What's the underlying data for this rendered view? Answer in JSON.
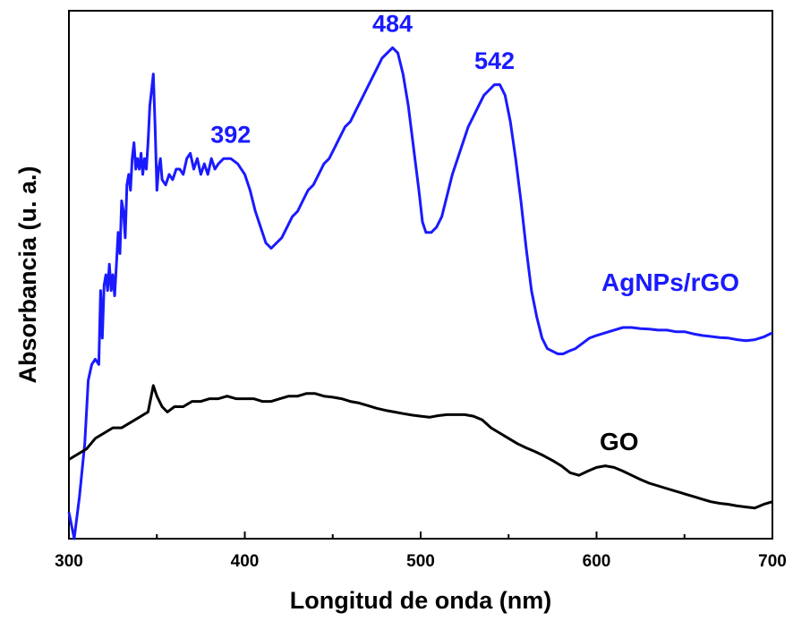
{
  "chart_data": {
    "type": "line",
    "xlabel": "Longitud de onda (nm)",
    "ylabel": "Absorbancia (u. a.)",
    "xlim": [
      300,
      700
    ],
    "ylim": [
      0,
      1
    ],
    "x_ticks": [
      "300",
      "400",
      "500",
      "600",
      "700"
    ],
    "y_tick_labels": false,
    "grid": false,
    "series": [
      {
        "name": "AgNPs/rGO",
        "color": "#1a1aff",
        "points": [
          [
            300,
            0.05
          ],
          [
            303,
            0.0
          ],
          [
            306,
            0.08
          ],
          [
            309,
            0.18
          ],
          [
            311,
            0.3
          ],
          [
            313,
            0.33
          ],
          [
            315,
            0.34
          ],
          [
            317,
            0.33
          ],
          [
            318,
            0.47
          ],
          [
            319,
            0.38
          ],
          [
            320,
            0.48
          ],
          [
            321,
            0.5
          ],
          [
            322,
            0.47
          ],
          [
            323,
            0.52
          ],
          [
            324,
            0.47
          ],
          [
            325,
            0.5
          ],
          [
            326,
            0.46
          ],
          [
            327,
            0.52
          ],
          [
            328,
            0.58
          ],
          [
            329,
            0.54
          ],
          [
            330,
            0.64
          ],
          [
            331,
            0.62
          ],
          [
            332,
            0.57
          ],
          [
            333,
            0.67
          ],
          [
            334,
            0.69
          ],
          [
            335,
            0.66
          ],
          [
            336,
            0.72
          ],
          [
            337,
            0.75
          ],
          [
            338,
            0.7
          ],
          [
            339,
            0.72
          ],
          [
            340,
            0.7
          ],
          [
            341,
            0.73
          ],
          [
            342,
            0.69
          ],
          [
            343,
            0.72
          ],
          [
            344,
            0.7
          ],
          [
            345,
            0.75
          ],
          [
            346,
            0.82
          ],
          [
            347,
            0.85
          ],
          [
            348,
            0.88
          ],
          [
            349,
            0.78
          ],
          [
            350,
            0.66
          ],
          [
            351,
            0.7
          ],
          [
            352,
            0.72
          ],
          [
            353,
            0.68
          ],
          [
            355,
            0.67
          ],
          [
            357,
            0.69
          ],
          [
            359,
            0.68
          ],
          [
            361,
            0.7
          ],
          [
            363,
            0.7
          ],
          [
            365,
            0.69
          ],
          [
            367,
            0.72
          ],
          [
            369,
            0.73
          ],
          [
            371,
            0.7
          ],
          [
            373,
            0.72
          ],
          [
            375,
            0.69
          ],
          [
            377,
            0.71
          ],
          [
            379,
            0.69
          ],
          [
            381,
            0.72
          ],
          [
            383,
            0.7
          ],
          [
            385,
            0.71
          ],
          [
            388,
            0.72
          ],
          [
            392,
            0.72
          ],
          [
            396,
            0.71
          ],
          [
            400,
            0.69
          ],
          [
            403,
            0.66
          ],
          [
            406,
            0.62
          ],
          [
            409,
            0.59
          ],
          [
            412,
            0.56
          ],
          [
            415,
            0.55
          ],
          [
            418,
            0.56
          ],
          [
            421,
            0.57
          ],
          [
            424,
            0.59
          ],
          [
            427,
            0.61
          ],
          [
            430,
            0.62
          ],
          [
            433,
            0.64
          ],
          [
            436,
            0.66
          ],
          [
            439,
            0.67
          ],
          [
            442,
            0.69
          ],
          [
            445,
            0.71
          ],
          [
            448,
            0.72
          ],
          [
            451,
            0.74
          ],
          [
            454,
            0.76
          ],
          [
            457,
            0.78
          ],
          [
            460,
            0.79
          ],
          [
            463,
            0.81
          ],
          [
            466,
            0.83
          ],
          [
            469,
            0.85
          ],
          [
            472,
            0.87
          ],
          [
            475,
            0.89
          ],
          [
            478,
            0.91
          ],
          [
            481,
            0.92
          ],
          [
            484,
            0.93
          ],
          [
            487,
            0.92
          ],
          [
            490,
            0.88
          ],
          [
            493,
            0.82
          ],
          [
            496,
            0.74
          ],
          [
            499,
            0.66
          ],
          [
            501,
            0.6
          ],
          [
            503,
            0.58
          ],
          [
            506,
            0.58
          ],
          [
            509,
            0.59
          ],
          [
            512,
            0.61
          ],
          [
            515,
            0.65
          ],
          [
            518,
            0.69
          ],
          [
            521,
            0.72
          ],
          [
            524,
            0.75
          ],
          [
            527,
            0.78
          ],
          [
            530,
            0.8
          ],
          [
            533,
            0.82
          ],
          [
            536,
            0.84
          ],
          [
            539,
            0.85
          ],
          [
            542,
            0.86
          ],
          [
            545,
            0.86
          ],
          [
            548,
            0.84
          ],
          [
            551,
            0.79
          ],
          [
            554,
            0.72
          ],
          [
            557,
            0.64
          ],
          [
            560,
            0.55
          ],
          [
            563,
            0.47
          ],
          [
            566,
            0.42
          ],
          [
            569,
            0.38
          ],
          [
            572,
            0.36
          ],
          [
            575,
            0.355
          ],
          [
            578,
            0.35
          ],
          [
            581,
            0.35
          ],
          [
            584,
            0.355
          ],
          [
            588,
            0.36
          ],
          [
            592,
            0.37
          ],
          [
            596,
            0.38
          ],
          [
            600,
            0.385
          ],
          [
            605,
            0.39
          ],
          [
            610,
            0.395
          ],
          [
            615,
            0.4
          ],
          [
            620,
            0.4
          ],
          [
            625,
            0.398
          ],
          [
            630,
            0.397
          ],
          [
            635,
            0.395
          ],
          [
            640,
            0.395
          ],
          [
            645,
            0.392
          ],
          [
            650,
            0.392
          ],
          [
            655,
            0.388
          ],
          [
            660,
            0.385
          ],
          [
            665,
            0.383
          ],
          [
            670,
            0.381
          ],
          [
            675,
            0.38
          ],
          [
            680,
            0.377
          ],
          [
            685,
            0.375
          ],
          [
            690,
            0.377
          ],
          [
            695,
            0.382
          ],
          [
            700,
            0.39
          ]
        ]
      },
      {
        "name": "GO",
        "color": "#000000",
        "points": [
          [
            300,
            0.15
          ],
          [
            305,
            0.16
          ],
          [
            310,
            0.17
          ],
          [
            315,
            0.19
          ],
          [
            320,
            0.2
          ],
          [
            325,
            0.21
          ],
          [
            330,
            0.21
          ],
          [
            335,
            0.22
          ],
          [
            340,
            0.23
          ],
          [
            345,
            0.24
          ],
          [
            348,
            0.29
          ],
          [
            350,
            0.27
          ],
          [
            353,
            0.25
          ],
          [
            356,
            0.24
          ],
          [
            360,
            0.25
          ],
          [
            365,
            0.25
          ],
          [
            370,
            0.26
          ],
          [
            375,
            0.26
          ],
          [
            380,
            0.265
          ],
          [
            385,
            0.265
          ],
          [
            390,
            0.27
          ],
          [
            395,
            0.265
          ],
          [
            400,
            0.265
          ],
          [
            405,
            0.265
          ],
          [
            410,
            0.26
          ],
          [
            415,
            0.26
          ],
          [
            420,
            0.265
          ],
          [
            425,
            0.27
          ],
          [
            430,
            0.27
          ],
          [
            435,
            0.275
          ],
          [
            440,
            0.275
          ],
          [
            445,
            0.27
          ],
          [
            450,
            0.268
          ],
          [
            455,
            0.265
          ],
          [
            460,
            0.26
          ],
          [
            465,
            0.257
          ],
          [
            470,
            0.252
          ],
          [
            475,
            0.247
          ],
          [
            480,
            0.243
          ],
          [
            485,
            0.24
          ],
          [
            490,
            0.237
          ],
          [
            495,
            0.234
          ],
          [
            500,
            0.232
          ],
          [
            505,
            0.23
          ],
          [
            510,
            0.233
          ],
          [
            515,
            0.235
          ],
          [
            520,
            0.235
          ],
          [
            525,
            0.235
          ],
          [
            530,
            0.232
          ],
          [
            535,
            0.225
          ],
          [
            540,
            0.21
          ],
          [
            545,
            0.2
          ],
          [
            550,
            0.19
          ],
          [
            555,
            0.18
          ],
          [
            560,
            0.172
          ],
          [
            565,
            0.165
          ],
          [
            570,
            0.157
          ],
          [
            575,
            0.148
          ],
          [
            580,
            0.138
          ],
          [
            585,
            0.125
          ],
          [
            590,
            0.12
          ],
          [
            595,
            0.128
          ],
          [
            600,
            0.135
          ],
          [
            605,
            0.138
          ],
          [
            610,
            0.135
          ],
          [
            615,
            0.128
          ],
          [
            620,
            0.12
          ],
          [
            625,
            0.112
          ],
          [
            630,
            0.105
          ],
          [
            635,
            0.1
          ],
          [
            640,
            0.095
          ],
          [
            645,
            0.09
          ],
          [
            650,
            0.085
          ],
          [
            655,
            0.08
          ],
          [
            660,
            0.075
          ],
          [
            665,
            0.07
          ],
          [
            670,
            0.067
          ],
          [
            675,
            0.065
          ],
          [
            680,
            0.062
          ],
          [
            685,
            0.06
          ],
          [
            690,
            0.058
          ],
          [
            695,
            0.065
          ],
          [
            700,
            0.07
          ]
        ]
      }
    ],
    "annotations": [
      {
        "text": "392",
        "x": 392,
        "y": 0.74,
        "color": "#1a1aff"
      },
      {
        "text": "484",
        "x": 484,
        "y": 0.95,
        "color": "#1a1aff"
      },
      {
        "text": "542",
        "x": 542,
        "y": 0.88,
        "color": "#1a1aff"
      }
    ],
    "series_labels": [
      {
        "text": "AgNPs/rGO",
        "color": "#1a1aff"
      },
      {
        "text": "GO",
        "color": "#000000"
      }
    ]
  }
}
